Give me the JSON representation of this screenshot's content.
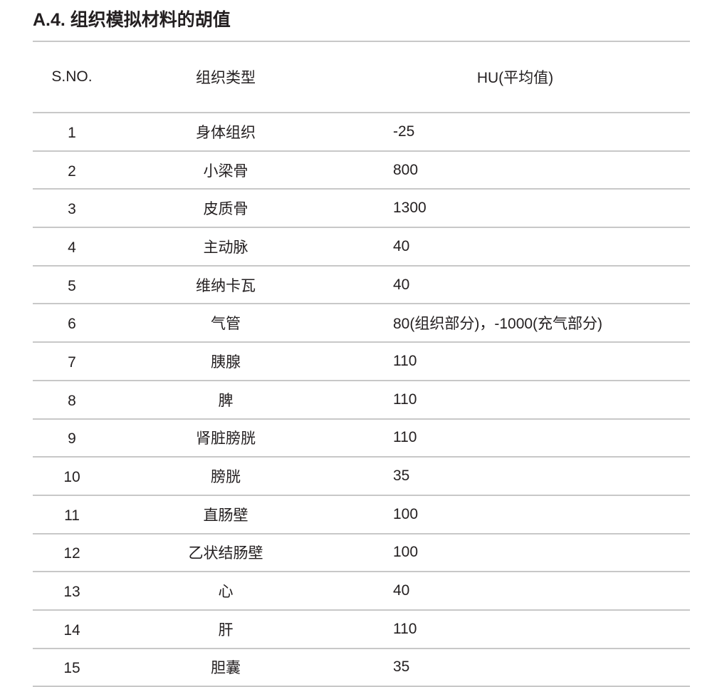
{
  "title": "A.4. 组织模拟材料的胡值",
  "table": {
    "headers": [
      "S.NO.",
      "组织类型",
      "HU(平均值)"
    ],
    "rows": [
      [
        "1",
        "身体组织",
        "-25"
      ],
      [
        "2",
        "小梁骨",
        "800"
      ],
      [
        "3",
        "皮质骨",
        "1300"
      ],
      [
        "4",
        "主动脉",
        "40"
      ],
      [
        "5",
        "维纳卡瓦",
        "40"
      ],
      [
        "6",
        "气管",
        "80(组织部分)，-1000(充气部分)"
      ],
      [
        "7",
        "胰腺",
        "110"
      ],
      [
        "8",
        "脾",
        "110"
      ],
      [
        "9",
        "肾脏膀胱",
        "110"
      ],
      [
        "10",
        "膀胱",
        "35"
      ],
      [
        "11",
        "直肠壁",
        "100"
      ],
      [
        "12",
        "乙状结肠壁",
        "100"
      ],
      [
        "13",
        "心",
        "40"
      ],
      [
        "14",
        "肝",
        "110"
      ],
      [
        "15",
        "胆囊",
        "35"
      ]
    ]
  }
}
